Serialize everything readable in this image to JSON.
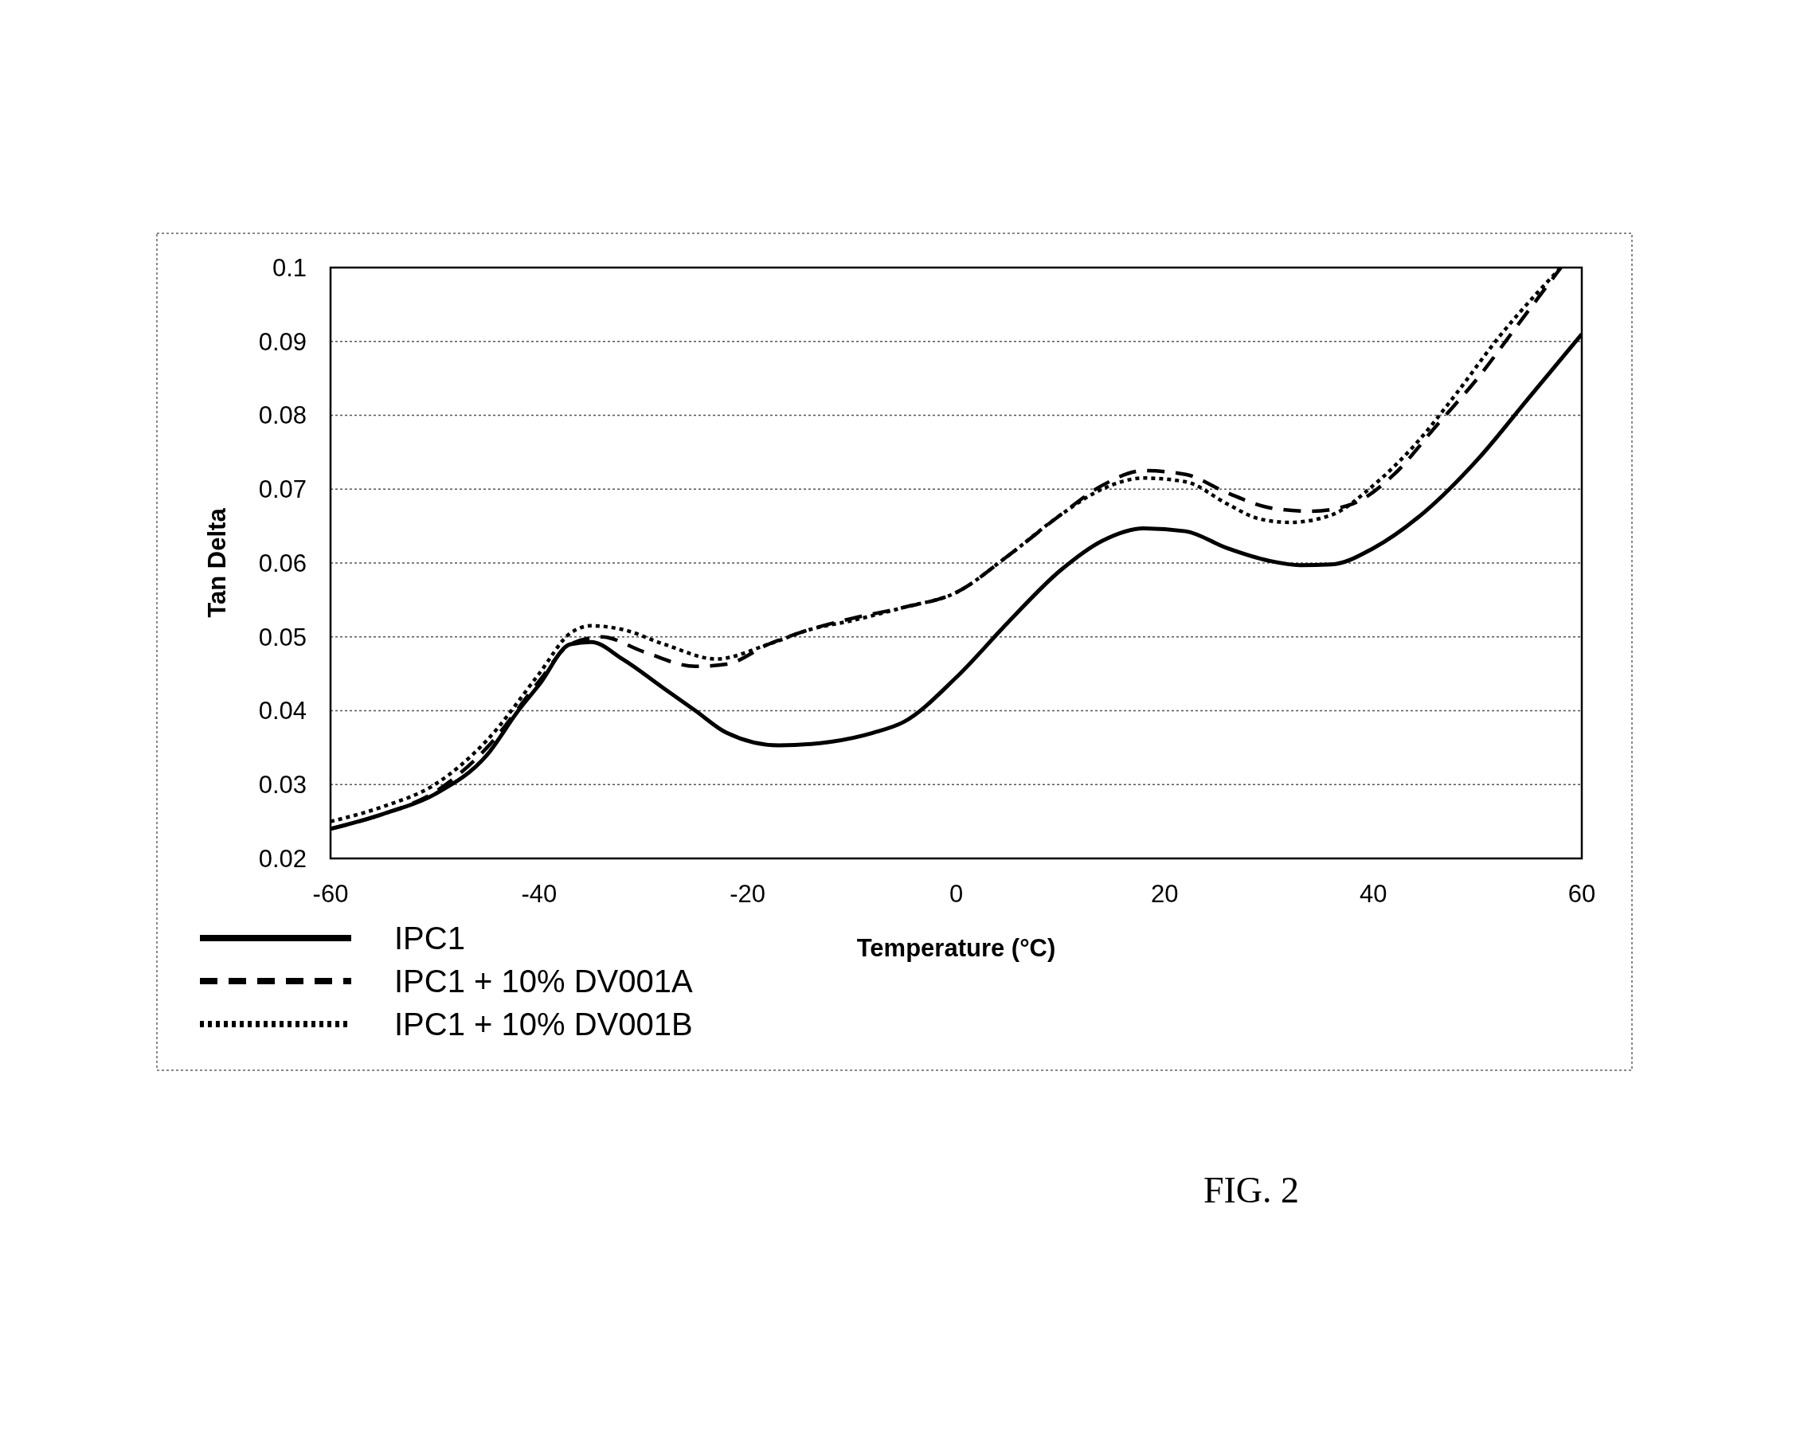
{
  "chart_data": {
    "type": "line",
    "xlabel": "Temperature (°C)",
    "ylabel": "Tan Delta",
    "annotations": [
      "FIG. 2"
    ],
    "xlim": [
      -60,
      60
    ],
    "xticks": [
      -60,
      -40,
      -20,
      0,
      20,
      40,
      60
    ],
    "ylim": [
      0.02,
      0.1
    ],
    "yticks": [
      0.02,
      0.03,
      0.04,
      0.05,
      0.06,
      0.07,
      0.08,
      0.09,
      0.1
    ],
    "grid": "y",
    "legend": "bottom left",
    "marker": "none",
    "series": [
      {
        "name": "IPC1",
        "color": "#000000",
        "line_style": "solid",
        "x": [
          -60,
          -55,
          -50,
          -45,
          -42,
          -40,
          -37,
          -35,
          -32,
          -28,
          -25,
          -22,
          -17,
          -12,
          -8,
          -5,
          0,
          5,
          10,
          14,
          18,
          22,
          26,
          30,
          33,
          36,
          40,
          45,
          50,
          55,
          60
        ],
        "values": [
          0.024,
          0.026,
          0.0287,
          0.034,
          0.04,
          0.0435,
          0.049,
          0.0493,
          0.047,
          0.043,
          0.04,
          0.037,
          0.0353,
          0.0358,
          0.037,
          0.0385,
          0.0445,
          0.052,
          0.059,
          0.063,
          0.0647,
          0.0643,
          0.062,
          0.0603,
          0.0597,
          0.0598,
          0.062,
          0.067,
          0.074,
          0.0825,
          0.091
        ]
      },
      {
        "name": "IPC1 + 10% DV001A",
        "color": "#000000",
        "line_style": "dashed",
        "x": [
          -60,
          -55,
          -50,
          -45,
          -40,
          -37,
          -34,
          -30,
          -25,
          -22,
          -18,
          -14,
          -10,
          -5,
          0,
          5,
          10,
          14,
          18,
          22,
          26,
          30,
          34,
          38,
          42,
          46,
          50,
          54,
          58
        ],
        "values": [
          0.024,
          0.026,
          0.029,
          0.035,
          0.044,
          0.049,
          0.05,
          0.048,
          0.046,
          0.0463,
          0.049,
          0.051,
          0.0525,
          0.054,
          0.056,
          0.061,
          0.0665,
          0.0705,
          0.0725,
          0.072,
          0.0695,
          0.0675,
          0.067,
          0.068,
          0.072,
          0.0785,
          0.085,
          0.0925,
          0.1
        ]
      },
      {
        "name": "IPC1 + 10% DV001B",
        "color": "#000000",
        "line_style": "dotted",
        "x": [
          -60,
          -55,
          -50,
          -45,
          -40,
          -37,
          -35,
          -32,
          -28,
          -23,
          -18,
          -14,
          -10,
          -5,
          0,
          5,
          10,
          14,
          18,
          22,
          26,
          29,
          32,
          36,
          40,
          44,
          48,
          52,
          56,
          58
        ],
        "values": [
          0.025,
          0.027,
          0.03,
          0.036,
          0.045,
          0.0505,
          0.0515,
          0.051,
          0.049,
          0.047,
          0.049,
          0.051,
          0.0522,
          0.054,
          0.056,
          0.061,
          0.0665,
          0.07,
          0.0715,
          0.071,
          0.068,
          0.066,
          0.0655,
          0.0665,
          0.0705,
          0.076,
          0.083,
          0.0905,
          0.097,
          0.1
        ]
      }
    ]
  }
}
